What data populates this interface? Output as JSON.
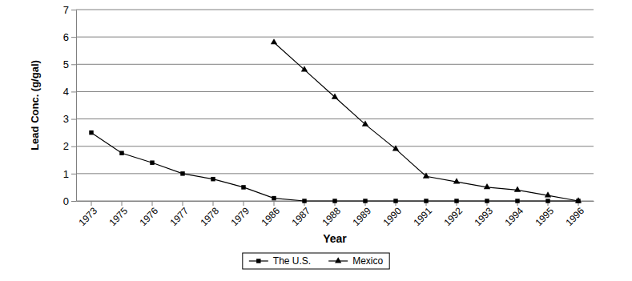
{
  "chart_data": {
    "type": "line",
    "x_label": "Year",
    "y_label": "Lead Conc. (g/gal)",
    "categories": [
      "1973",
      "1975",
      "1976",
      "1977",
      "1978",
      "1979",
      "1986",
      "1987",
      "1988",
      "1989",
      "1990",
      "1991",
      "1992",
      "1993",
      "1994",
      "1995",
      "1996"
    ],
    "series": [
      {
        "name": "The U.S.",
        "color": "#000000",
        "marker": "square",
        "values": [
          2.5,
          1.75,
          1.4,
          1.0,
          0.8,
          0.5,
          0.1,
          0,
          0,
          0,
          0,
          0,
          0,
          0,
          0,
          0,
          0
        ]
      },
      {
        "name": "Mexico",
        "color": "#000000",
        "marker": "triangle",
        "values": [
          null,
          null,
          null,
          null,
          null,
          null,
          5.8,
          4.8,
          3.8,
          2.8,
          1.9,
          0.9,
          0.7,
          0.5,
          0.4,
          0.2,
          0
        ]
      }
    ],
    "ylim": [
      0,
      7
    ],
    "yticks": [
      0,
      1,
      2,
      3,
      4,
      5,
      6,
      7
    ],
    "grid": true,
    "legend": "bottom"
  }
}
